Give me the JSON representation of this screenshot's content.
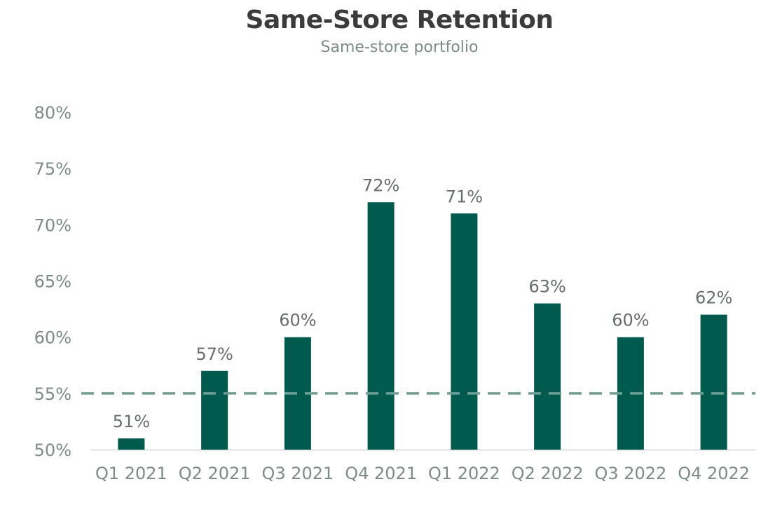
{
  "chart_data": {
    "type": "bar",
    "title": "Same-Store Retention",
    "subtitle": "Same-store portfolio",
    "categories": [
      "Q1 2021",
      "Q2 2021",
      "Q3 2021",
      "Q4 2021",
      "Q1 2022",
      "Q2 2022",
      "Q3 2022",
      "Q4 2022"
    ],
    "values": [
      51,
      57,
      60,
      72,
      71,
      63,
      60,
      62
    ],
    "value_labels": [
      "51%",
      "57%",
      "60%",
      "72%",
      "71%",
      "63%",
      "60%",
      "62%"
    ],
    "ylim": [
      50,
      80
    ],
    "yticks": [
      50,
      55,
      60,
      65,
      70,
      75,
      80
    ],
    "ytick_labels": [
      "50%",
      "55%",
      "60%",
      "65%",
      "70%",
      "75%",
      "80%"
    ],
    "reference_line": 55,
    "grid": false,
    "legend": "none",
    "colors": {
      "bar": "#005a4d",
      "reference_line": "#6f9e95",
      "axis": "#d4d4d4"
    }
  }
}
